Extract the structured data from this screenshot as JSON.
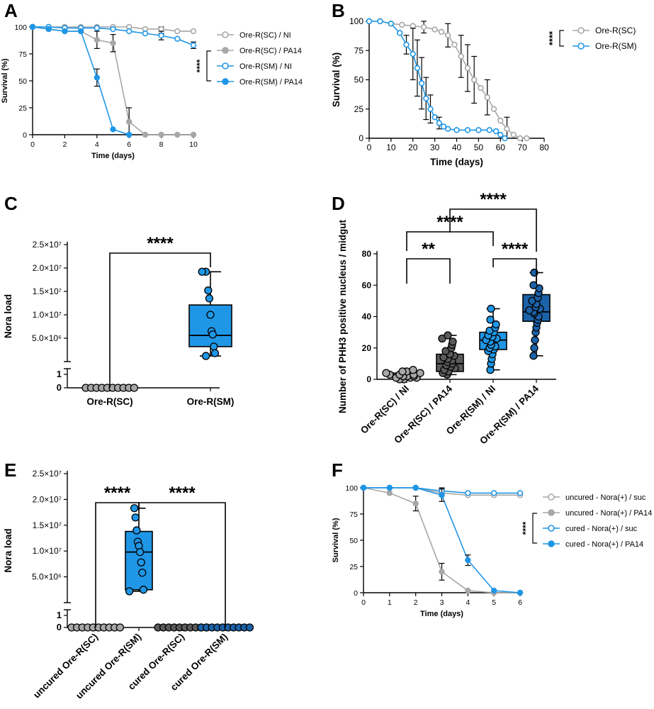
{
  "figure": {
    "panels": [
      "A",
      "B",
      "C",
      "D",
      "E",
      "F"
    ]
  },
  "colors": {
    "gray_light": "#a7a7a7",
    "gray_dark": "#555555",
    "blue": "#1f96e6",
    "blue_dark": "#1a5f9e",
    "box_dark_gray": "#5a5a5a",
    "box_blue": "#1f96e6",
    "box_blue_dark": "#1c62a8"
  },
  "chart_data": [
    {
      "id": "A",
      "type": "line",
      "title": "",
      "xlabel": "Time (days)",
      "ylabel": "Survival (%)",
      "xlim": [
        0,
        10
      ],
      "ylim": [
        0,
        100
      ],
      "xticks": [
        "0",
        "2",
        "4",
        "6",
        "8",
        "10"
      ],
      "yticks": [
        "0",
        "25",
        "50",
        "75",
        "100"
      ],
      "significance": "****",
      "legend_position": "right",
      "series": [
        {
          "name": "Ore-R(SC) / NI",
          "style": "gray-open",
          "x": [
            0,
            1,
            2,
            3,
            4,
            5,
            6,
            7,
            8,
            9,
            10
          ],
          "y": [
            100,
            100,
            100,
            100,
            100,
            100,
            100,
            98,
            98,
            96,
            96
          ]
        },
        {
          "name": "Ore-R(SC) / PA14",
          "style": "gray-filled",
          "x": [
            0,
            1,
            2,
            3,
            4,
            5,
            6,
            7,
            8,
            9,
            10
          ],
          "y": [
            100,
            98,
            96,
            96,
            88,
            85,
            12,
            0,
            0,
            0,
            0
          ]
        },
        {
          "name": "Ore-R(SM) / NI",
          "style": "blue-open",
          "x": [
            0,
            1,
            2,
            3,
            4,
            5,
            6,
            7,
            8,
            9,
            10
          ],
          "y": [
            100,
            100,
            99,
            99,
            99,
            98,
            96,
            94,
            92,
            89,
            83
          ]
        },
        {
          "name": "Ore-R(SM) / PA14",
          "style": "blue-filled",
          "x": [
            0,
            1,
            2,
            3,
            4,
            5,
            6
          ],
          "y": [
            100,
            98,
            96,
            96,
            53,
            5,
            0
          ]
        }
      ]
    },
    {
      "id": "B",
      "type": "line",
      "title": "",
      "xlabel": "Time (days)",
      "ylabel": "Survival (%)",
      "xlim": [
        0,
        80
      ],
      "ylim": [
        0,
        100
      ],
      "xticks": [
        "0",
        "10",
        "20",
        "30",
        "40",
        "50",
        "60",
        "70",
        "80"
      ],
      "yticks": [
        "0",
        "25",
        "50",
        "75",
        "100"
      ],
      "significance": "****",
      "legend_position": "right",
      "series": [
        {
          "name": "Ore-R(SC)",
          "style": "gray-open",
          "x": [
            0,
            5,
            10,
            15,
            20,
            25,
            30,
            33,
            36,
            39,
            42,
            45,
            48,
            51,
            54,
            57,
            60,
            63,
            66,
            69,
            72
          ],
          "y": [
            100,
            100,
            98,
            97,
            96,
            95,
            93,
            91,
            88,
            80,
            70,
            60,
            50,
            43,
            35,
            25,
            15,
            8,
            3,
            0,
            0
          ]
        },
        {
          "name": "Ore-R(SM)",
          "style": "blue-open",
          "x": [
            0,
            5,
            10,
            14,
            17,
            20,
            22,
            24,
            26,
            28,
            30,
            32,
            34,
            36,
            40,
            45,
            50,
            55,
            58,
            60,
            62
          ],
          "y": [
            100,
            100,
            98,
            90,
            80,
            72,
            60,
            47,
            34,
            25,
            18,
            13,
            10,
            8,
            7,
            7,
            7,
            7,
            6,
            3,
            0
          ]
        }
      ]
    },
    {
      "id": "C",
      "type": "box",
      "ylabel": "Nora load",
      "categories": [
        "Ore-R(SC)",
        "Ore-R(SM)"
      ],
      "yticks_upper": [
        "5.0×10⁶",
        "1.0×10⁷",
        "1.5×10⁷",
        "2.0×10⁷",
        "2.5×10⁷"
      ],
      "ylim_upper": [
        0,
        25000000
      ],
      "yticks_lower": [
        "0",
        "1"
      ],
      "significance": [
        "****"
      ],
      "groups": [
        {
          "name": "Ore-R(SC)",
          "color": "gray",
          "points": [
            0,
            0,
            0,
            0,
            0,
            0,
            0,
            0,
            0,
            0
          ],
          "box": null
        },
        {
          "name": "Ore-R(SM)",
          "color": "blue",
          "points": [
            19200000,
            19200000,
            15200000,
            13500000,
            10000000,
            6500000,
            5800000,
            3200000,
            1800000,
            1200000
          ],
          "box": {
            "min": 1200000,
            "q1": 3200000,
            "median": 5600000,
            "q3": 12100000,
            "max": 19200000
          }
        }
      ]
    },
    {
      "id": "D",
      "type": "box",
      "ylabel": "Number of PHH3 positive nucleus / midgut",
      "categories": [
        "Ore-R(SC) / NI",
        "Ore-R(SC) / PA14",
        "Ore-R(SM) / NI",
        "Ore-R(SM) / PA14"
      ],
      "ylim": [
        0,
        80
      ],
      "yticks": [
        "0",
        "20",
        "40",
        "60",
        "80"
      ],
      "significance": [
        "**",
        "****",
        "****",
        "****"
      ],
      "groups": [
        {
          "name": "Ore-R(SC) / NI",
          "color": "gray",
          "points": [
            0,
            0,
            1,
            1,
            1,
            2,
            2,
            2,
            3,
            3,
            3,
            4,
            4,
            5,
            5,
            6
          ],
          "box": {
            "min": 0,
            "q1": 1,
            "median": 2,
            "q3": 4,
            "max": 6
          }
        },
        {
          "name": "Ore-R(SC) / PA14",
          "color": "dark-gray",
          "points": [
            3,
            4,
            5,
            6,
            7,
            8,
            9,
            10,
            11,
            12,
            13,
            14,
            15,
            16,
            18,
            20,
            22,
            24,
            26,
            28
          ],
          "box": {
            "min": 3,
            "q1": 5,
            "median": 10,
            "q3": 16,
            "max": 28
          }
        },
        {
          "name": "Ore-R(SM) / NI",
          "color": "blue",
          "points": [
            6,
            10,
            13,
            16,
            18,
            19,
            20,
            21,
            22,
            24,
            25,
            26,
            27,
            28,
            30,
            31,
            33,
            35,
            38,
            45
          ],
          "box": {
            "min": 6,
            "q1": 19,
            "median": 25,
            "q3": 30,
            "max": 45
          }
        },
        {
          "name": "Ore-R(SM) / PA14",
          "color": "blue-dark",
          "points": [
            15,
            20,
            25,
            30,
            33,
            36,
            38,
            40,
            42,
            43,
            44,
            45,
            46,
            48,
            50,
            52,
            55,
            58,
            60,
            68
          ],
          "box": {
            "min": 15,
            "q1": 37,
            "median": 43,
            "q3": 54,
            "max": 68
          }
        }
      ]
    },
    {
      "id": "E",
      "type": "box",
      "ylabel": "Nora load",
      "categories": [
        "uncured Ore-R(SC)",
        "uncured Ore-R(SM)",
        "cured Ore-R(SC)",
        "cured Ore-R(SM)"
      ],
      "yticks_upper": [
        "5.0×10⁶",
        "1.0×10⁷",
        "1.5×10⁷",
        "2.0×10⁷",
        "2.5×10⁷"
      ],
      "ylim_upper": [
        0,
        25000000
      ],
      "yticks_lower": [
        "0",
        "1"
      ],
      "significance": [
        "****",
        "****"
      ],
      "groups": [
        {
          "name": "uncured Ore-R(SC)",
          "color": "gray",
          "points": [
            0,
            0,
            0,
            0,
            0,
            0,
            0,
            0,
            0,
            0
          ],
          "box": null
        },
        {
          "name": "uncured Ore-R(SM)",
          "color": "blue",
          "points": [
            18300000,
            16500000,
            14000000,
            11800000,
            11000000,
            9800000,
            7800000,
            5800000,
            2500000,
            2200000
          ],
          "box": {
            "min": 2200000,
            "q1": 2500000,
            "median": 9800000,
            "q3": 13800000,
            "max": 18300000
          }
        },
        {
          "name": "cured Ore-R(SC)",
          "color": "dark-gray",
          "points": [
            0,
            0,
            0,
            0,
            0,
            0,
            0,
            0,
            0,
            0
          ],
          "box": null
        },
        {
          "name": "cured Ore-R(SM)",
          "color": "blue-dark",
          "points": [
            0,
            0,
            0,
            0,
            0,
            0,
            0,
            0,
            0,
            0
          ],
          "box": null
        }
      ]
    },
    {
      "id": "F",
      "type": "line",
      "title": "",
      "xlabel": "Time (days)",
      "ylabel": "Survival (%)",
      "xlim": [
        0,
        6
      ],
      "ylim": [
        0,
        100
      ],
      "xticks": [
        "0",
        "1",
        "2",
        "3",
        "4",
        "5",
        "6"
      ],
      "yticks": [
        "0",
        "25",
        "50",
        "75",
        "100"
      ],
      "significance": "****",
      "legend_position": "right",
      "series": [
        {
          "name": "uncured - Nora(+) / suc",
          "style": "gray-open",
          "x": [
            0,
            1,
            2,
            3,
            4,
            5,
            6
          ],
          "y": [
            100,
            100,
            100,
            95,
            93,
            93,
            93
          ]
        },
        {
          "name": "uncured - Nora(+) / PA14",
          "style": "gray-filled",
          "x": [
            0,
            1,
            2,
            3,
            4,
            5,
            6
          ],
          "y": [
            100,
            95,
            85,
            20,
            2,
            0,
            0
          ]
        },
        {
          "name": "cured - Nora(+) / suc",
          "style": "blue-open",
          "x": [
            0,
            1,
            2,
            3,
            4,
            5,
            6
          ],
          "y": [
            100,
            100,
            100,
            97,
            95,
            95,
            95
          ]
        },
        {
          "name": "cured - Nora(+) / PA14",
          "style": "blue-filled",
          "x": [
            0,
            1,
            2,
            3,
            4,
            5,
            6
          ],
          "y": [
            100,
            100,
            100,
            93,
            31,
            2,
            0
          ]
        }
      ]
    }
  ]
}
